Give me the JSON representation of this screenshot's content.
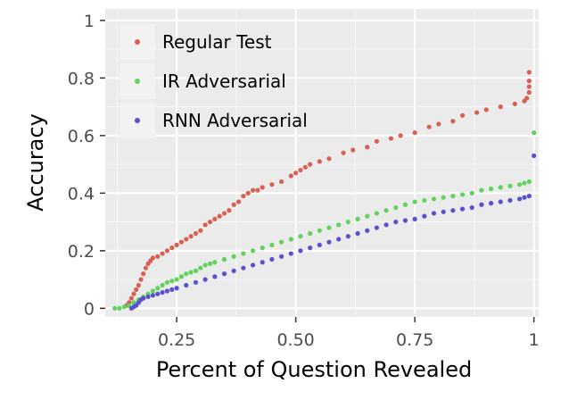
{
  "chart_data": {
    "type": "scatter",
    "title": "",
    "xlabel": "Percent of Question Revealed",
    "ylabel": "Accuracy",
    "xlim": [
      0.1,
      1.01
    ],
    "ylim": [
      -0.03,
      1.04
    ],
    "xticks": [
      0.25,
      0.5,
      0.75,
      1
    ],
    "xtick_labels": [
      "0.25",
      "0.50",
      "0.75",
      "1"
    ],
    "yticks": [
      0,
      0.2,
      0.4,
      0.6,
      0.8,
      1
    ],
    "ytick_labels": [
      "0",
      "0.2",
      "0.4",
      "0.6",
      "0.8",
      "1"
    ],
    "grid": true,
    "legend_position": "top-left",
    "panel_background": "#ebebeb",
    "series": [
      {
        "name": "Regular Test",
        "color": "#d95f53",
        "points": [
          [
            0.145,
            0.01
          ],
          [
            0.15,
            0.02
          ],
          [
            0.155,
            0.035
          ],
          [
            0.16,
            0.05
          ],
          [
            0.165,
            0.065
          ],
          [
            0.17,
            0.08
          ],
          [
            0.175,
            0.1
          ],
          [
            0.18,
            0.12
          ],
          [
            0.185,
            0.14
          ],
          [
            0.19,
            0.155
          ],
          [
            0.195,
            0.165
          ],
          [
            0.2,
            0.175
          ],
          [
            0.21,
            0.18
          ],
          [
            0.22,
            0.19
          ],
          [
            0.23,
            0.2
          ],
          [
            0.24,
            0.21
          ],
          [
            0.25,
            0.22
          ],
          [
            0.26,
            0.23
          ],
          [
            0.27,
            0.24
          ],
          [
            0.28,
            0.25
          ],
          [
            0.29,
            0.26
          ],
          [
            0.3,
            0.27
          ],
          [
            0.31,
            0.29
          ],
          [
            0.32,
            0.3
          ],
          [
            0.33,
            0.31
          ],
          [
            0.34,
            0.32
          ],
          [
            0.35,
            0.33
          ],
          [
            0.36,
            0.34
          ],
          [
            0.37,
            0.36
          ],
          [
            0.38,
            0.37
          ],
          [
            0.39,
            0.39
          ],
          [
            0.4,
            0.4
          ],
          [
            0.41,
            0.41
          ],
          [
            0.42,
            0.41
          ],
          [
            0.43,
            0.42
          ],
          [
            0.45,
            0.43
          ],
          [
            0.47,
            0.44
          ],
          [
            0.49,
            0.46
          ],
          [
            0.5,
            0.47
          ],
          [
            0.51,
            0.48
          ],
          [
            0.52,
            0.49
          ],
          [
            0.53,
            0.5
          ],
          [
            0.55,
            0.51
          ],
          [
            0.57,
            0.52
          ],
          [
            0.6,
            0.54
          ],
          [
            0.62,
            0.55
          ],
          [
            0.65,
            0.56
          ],
          [
            0.67,
            0.58
          ],
          [
            0.7,
            0.59
          ],
          [
            0.72,
            0.6
          ],
          [
            0.75,
            0.61
          ],
          [
            0.78,
            0.63
          ],
          [
            0.8,
            0.64
          ],
          [
            0.83,
            0.65
          ],
          [
            0.85,
            0.67
          ],
          [
            0.88,
            0.68
          ],
          [
            0.9,
            0.69
          ],
          [
            0.93,
            0.7
          ],
          [
            0.96,
            0.71
          ],
          [
            0.98,
            0.72
          ],
          [
            0.985,
            0.73
          ],
          [
            0.99,
            0.75
          ],
          [
            0.99,
            0.77
          ],
          [
            0.99,
            0.79
          ],
          [
            0.99,
            0.82
          ]
        ]
      },
      {
        "name": "IR Adversarial",
        "color": "#5fd35c",
        "points": [
          [
            0.12,
            0.0
          ],
          [
            0.13,
            0.0
          ],
          [
            0.14,
            0.005
          ],
          [
            0.15,
            0.01
          ],
          [
            0.16,
            0.02
          ],
          [
            0.17,
            0.03
          ],
          [
            0.18,
            0.04
          ],
          [
            0.19,
            0.05
          ],
          [
            0.2,
            0.06
          ],
          [
            0.21,
            0.07
          ],
          [
            0.22,
            0.08
          ],
          [
            0.23,
            0.09
          ],
          [
            0.24,
            0.095
          ],
          [
            0.25,
            0.1
          ],
          [
            0.26,
            0.11
          ],
          [
            0.27,
            0.12
          ],
          [
            0.28,
            0.125
          ],
          [
            0.29,
            0.13
          ],
          [
            0.3,
            0.14
          ],
          [
            0.31,
            0.15
          ],
          [
            0.32,
            0.155
          ],
          [
            0.33,
            0.16
          ],
          [
            0.35,
            0.17
          ],
          [
            0.37,
            0.18
          ],
          [
            0.39,
            0.19
          ],
          [
            0.41,
            0.2
          ],
          [
            0.43,
            0.21
          ],
          [
            0.45,
            0.22
          ],
          [
            0.47,
            0.23
          ],
          [
            0.49,
            0.24
          ],
          [
            0.51,
            0.25
          ],
          [
            0.53,
            0.26
          ],
          [
            0.55,
            0.27
          ],
          [
            0.57,
            0.28
          ],
          [
            0.59,
            0.29
          ],
          [
            0.61,
            0.3
          ],
          [
            0.63,
            0.31
          ],
          [
            0.65,
            0.32
          ],
          [
            0.67,
            0.33
          ],
          [
            0.69,
            0.34
          ],
          [
            0.71,
            0.35
          ],
          [
            0.73,
            0.36
          ],
          [
            0.75,
            0.37
          ],
          [
            0.77,
            0.375
          ],
          [
            0.79,
            0.38
          ],
          [
            0.81,
            0.385
          ],
          [
            0.83,
            0.39
          ],
          [
            0.85,
            0.395
          ],
          [
            0.87,
            0.4
          ],
          [
            0.89,
            0.41
          ],
          [
            0.91,
            0.415
          ],
          [
            0.93,
            0.42
          ],
          [
            0.95,
            0.425
          ],
          [
            0.97,
            0.43
          ],
          [
            0.98,
            0.435
          ],
          [
            0.99,
            0.44
          ],
          [
            1.0,
            0.61
          ]
        ]
      },
      {
        "name": "RNN Adversarial",
        "color": "#5a4fcf",
        "points": [
          [
            0.155,
            0.0
          ],
          [
            0.16,
            0.005
          ],
          [
            0.165,
            0.01
          ],
          [
            0.17,
            0.02
          ],
          [
            0.175,
            0.03
          ],
          [
            0.18,
            0.035
          ],
          [
            0.19,
            0.04
          ],
          [
            0.2,
            0.045
          ],
          [
            0.21,
            0.05
          ],
          [
            0.22,
            0.055
          ],
          [
            0.23,
            0.06
          ],
          [
            0.24,
            0.065
          ],
          [
            0.25,
            0.07
          ],
          [
            0.27,
            0.08
          ],
          [
            0.29,
            0.09
          ],
          [
            0.31,
            0.1
          ],
          [
            0.33,
            0.11
          ],
          [
            0.35,
            0.12
          ],
          [
            0.37,
            0.13
          ],
          [
            0.39,
            0.14
          ],
          [
            0.41,
            0.15
          ],
          [
            0.43,
            0.16
          ],
          [
            0.45,
            0.17
          ],
          [
            0.47,
            0.18
          ],
          [
            0.49,
            0.19
          ],
          [
            0.51,
            0.2
          ],
          [
            0.53,
            0.21
          ],
          [
            0.55,
            0.22
          ],
          [
            0.57,
            0.23
          ],
          [
            0.59,
            0.24
          ],
          [
            0.61,
            0.25
          ],
          [
            0.63,
            0.26
          ],
          [
            0.65,
            0.27
          ],
          [
            0.67,
            0.28
          ],
          [
            0.69,
            0.29
          ],
          [
            0.71,
            0.3
          ],
          [
            0.73,
            0.305
          ],
          [
            0.75,
            0.31
          ],
          [
            0.77,
            0.32
          ],
          [
            0.79,
            0.33
          ],
          [
            0.81,
            0.335
          ],
          [
            0.83,
            0.34
          ],
          [
            0.85,
            0.345
          ],
          [
            0.87,
            0.35
          ],
          [
            0.89,
            0.36
          ],
          [
            0.91,
            0.365
          ],
          [
            0.93,
            0.37
          ],
          [
            0.95,
            0.375
          ],
          [
            0.97,
            0.38
          ],
          [
            0.98,
            0.385
          ],
          [
            0.99,
            0.39
          ],
          [
            1.0,
            0.53
          ]
        ]
      }
    ]
  }
}
